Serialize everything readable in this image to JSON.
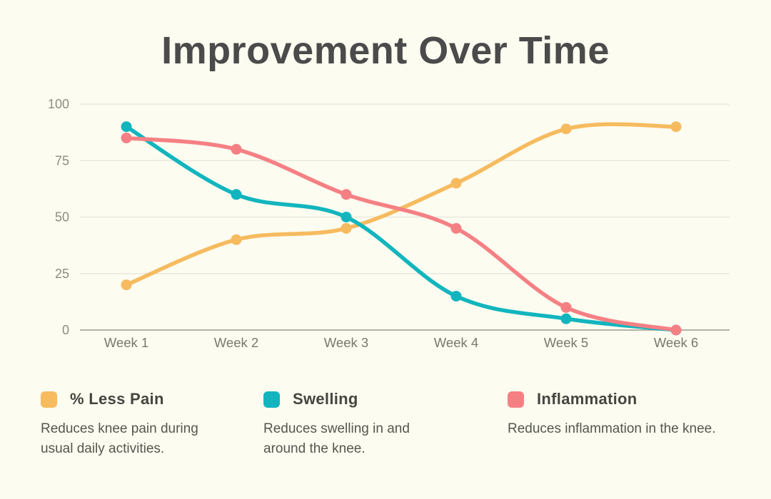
{
  "title": "Improvement Over Time",
  "chart_data": {
    "type": "line",
    "title": "Improvement Over Time",
    "categories": [
      "Week 1",
      "Week 2",
      "Week 3",
      "Week 4",
      "Week 5",
      "Week 6"
    ],
    "series": [
      {
        "name": "% Less Pain",
        "color": "#F6BB5F",
        "values": [
          20,
          40,
          45,
          65,
          89,
          90
        ]
      },
      {
        "name": "Swelling",
        "color": "#12B5BE",
        "values": [
          90,
          60,
          50,
          15,
          5,
          0
        ]
      },
      {
        "name": "Inflammation",
        "color": "#F58084",
        "values": [
          85,
          80,
          60,
          45,
          10,
          0
        ]
      }
    ],
    "ylim": [
      0,
      100
    ],
    "yticks": [
      0,
      25,
      50,
      75,
      100
    ],
    "grid": true,
    "line_style": "smooth",
    "markers": "circle",
    "legend_position": "bottom"
  },
  "legend": {
    "items": [
      {
        "label": "% Less Pain",
        "color": "#F6BB5F",
        "description": "Reduces knee pain during usual daily activities."
      },
      {
        "label": "Swelling",
        "color": "#12B5BE",
        "description": "Reduces swelling in and around the knee."
      },
      {
        "label": "Inflammation",
        "color": "#F58084",
        "description": "Reduces inflammation in the knee."
      }
    ]
  },
  "colors": {
    "background": "#FCFCF0",
    "title": "#4B4B4B",
    "grid": "#E6E5DB",
    "axis_line": "#A8A89E",
    "y_tick_label": "#8C8C83",
    "x_tick_label": "#78786F",
    "legend_label": "#454540",
    "legend_description": "#55564E"
  }
}
